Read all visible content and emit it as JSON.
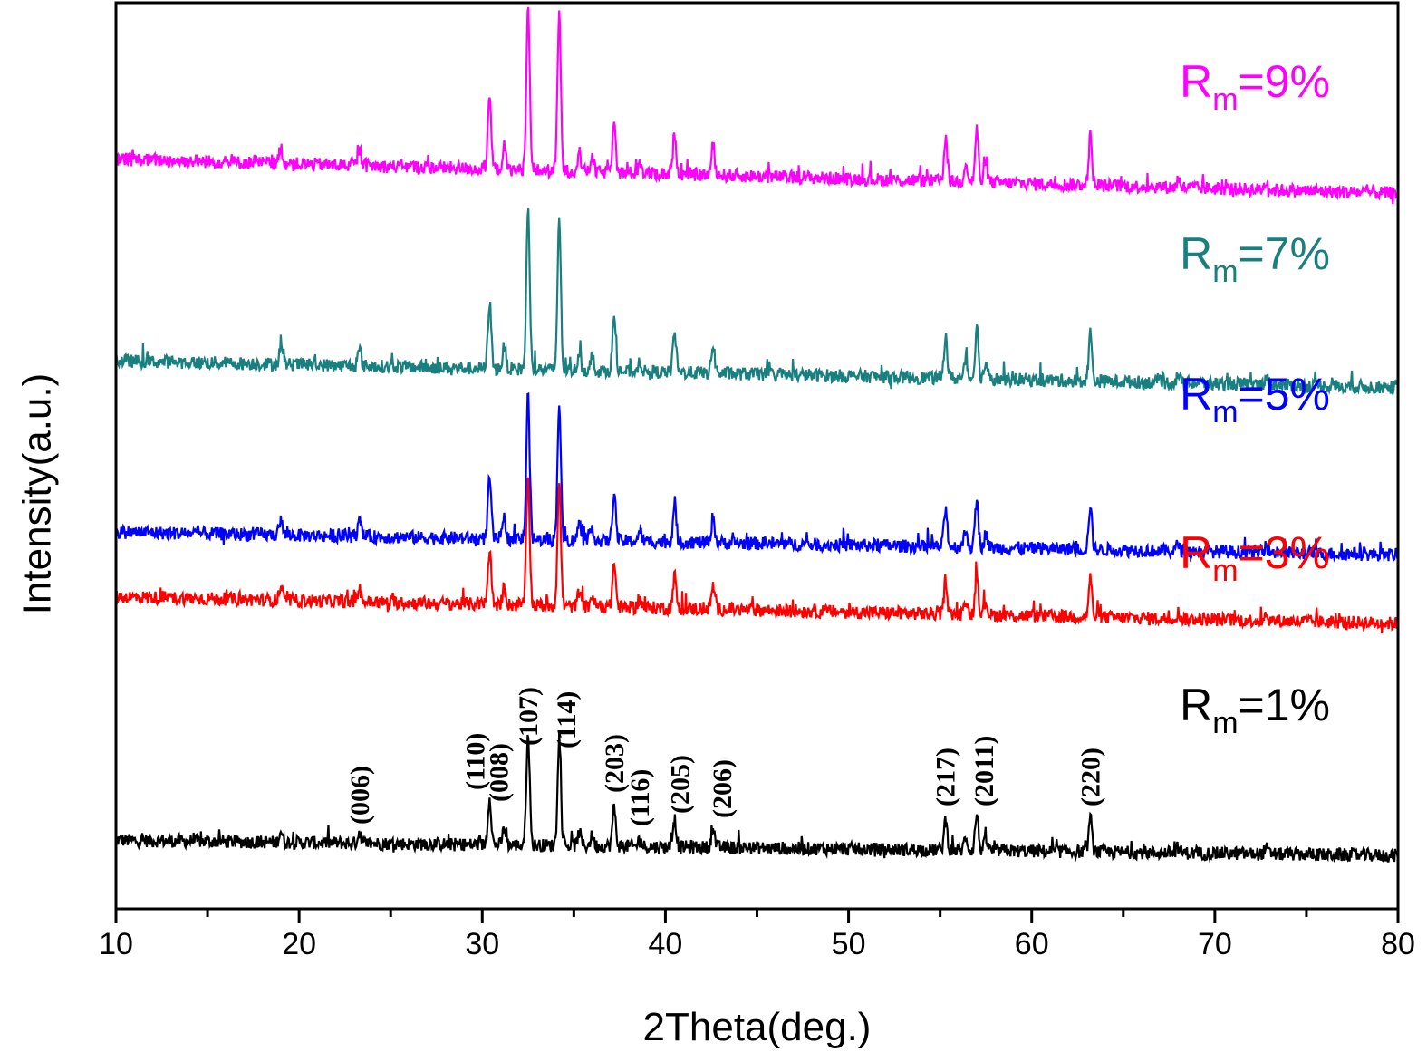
{
  "chart_data": {
    "type": "line",
    "title": "",
    "xlabel": "2Theta(deg.)",
    "ylabel": "Intensity(a.u.)",
    "xlim": [
      10,
      80
    ],
    "xticks": [
      "10",
      "20",
      "30",
      "40",
      "50",
      "60",
      "70",
      "80"
    ],
    "y_ticks_shown": false,
    "grid": false,
    "legend": "inline labels at right of each curve",
    "peaks": [
      {
        "x": 19.0,
        "h": 0.1
      },
      {
        "x": 23.3,
        "h": 0.1
      },
      {
        "x": 30.4,
        "h": 0.42
      },
      {
        "x": 31.2,
        "h": 0.14
      },
      {
        "x": 32.5,
        "h": 1.0
      },
      {
        "x": 34.2,
        "h": 0.96
      },
      {
        "x": 35.3,
        "h": 0.12
      },
      {
        "x": 36.0,
        "h": 0.09
      },
      {
        "x": 37.2,
        "h": 0.34
      },
      {
        "x": 38.6,
        "h": 0.07
      },
      {
        "x": 40.5,
        "h": 0.25
      },
      {
        "x": 42.6,
        "h": 0.18
      },
      {
        "x": 55.3,
        "h": 0.27
      },
      {
        "x": 56.4,
        "h": 0.12
      },
      {
        "x": 57.0,
        "h": 0.32
      },
      {
        "x": 57.5,
        "h": 0.1
      },
      {
        "x": 63.2,
        "h": 0.3
      },
      {
        "x": 68.0,
        "h": 0.05
      },
      {
        "x": 72.8,
        "h": 0.05
      }
    ],
    "series": [
      {
        "name": "R",
        "subscript": "m",
        "suffix": "=1%",
        "color": "#000000",
        "baseline_start": 0.18,
        "baseline_end": 0.14,
        "peak_scale": 0.3
      },
      {
        "name": "R",
        "subscript": "m",
        "suffix": "=3%",
        "color": "#ff0000",
        "baseline_start": 0.82,
        "baseline_end": 0.75,
        "peak_scale": 0.34
      },
      {
        "name": "R",
        "subscript": "m",
        "suffix": "=5%",
        "color": "#0000ff",
        "baseline_start": 0.99,
        "baseline_end": 0.93,
        "peak_scale": 0.38
      },
      {
        "name": "R",
        "subscript": "m",
        "suffix": "=7%",
        "color": "#1a7f7f",
        "baseline_start": 1.44,
        "baseline_end": 1.37,
        "peak_scale": 0.42
      },
      {
        "name": "R",
        "subscript": "m",
        "suffix": "=9%",
        "color": "#ff00ff",
        "baseline_start": 1.97,
        "baseline_end": 1.88,
        "peak_scale": 0.43
      }
    ],
    "hkl_labels": [
      {
        "text": "(006)",
        "x": 23.3
      },
      {
        "text": "(110)",
        "x": 30.4
      },
      {
        "text": "(008)",
        "x": 31.3
      },
      {
        "text": "(107)",
        "x": 32.5
      },
      {
        "text": "(114)",
        "x": 34.2
      },
      {
        "text": "(203)",
        "x": 37.2
      },
      {
        "text": "(116)",
        "x": 38.6
      },
      {
        "text": "(205)",
        "x": 40.5
      },
      {
        "text": "(206)",
        "x": 42.6
      },
      {
        "text": "(217)",
        "x": 55.3
      },
      {
        "text": "(2011)",
        "x": 57.0
      },
      {
        "text": "(220)",
        "x": 63.2
      }
    ]
  }
}
